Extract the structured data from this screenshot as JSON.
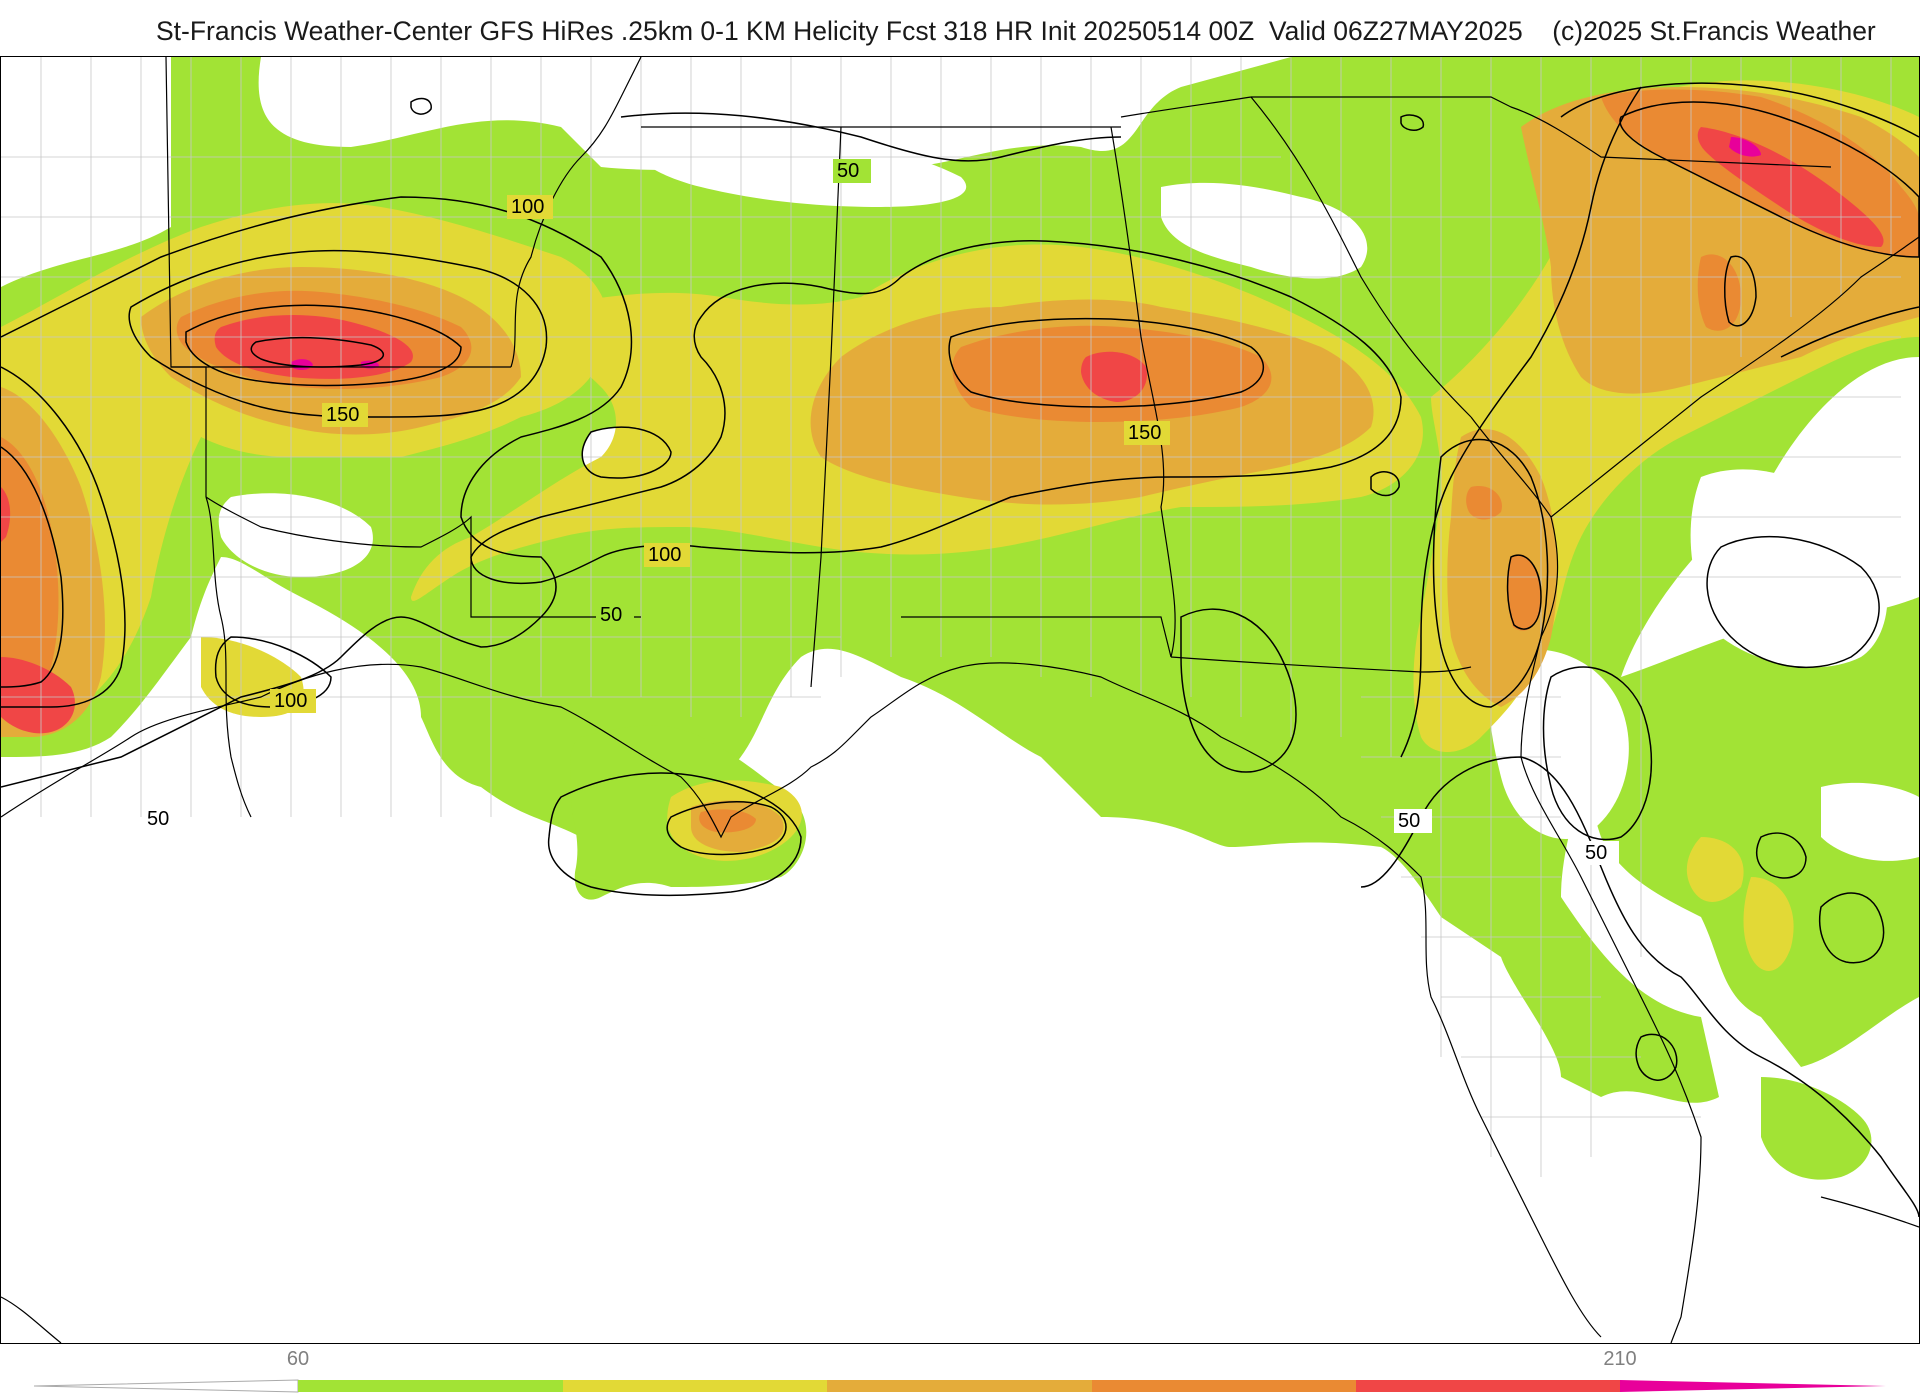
{
  "title": "St-Francis Weather-Center GFS HiRes .25km 0-1 KM Helicity Fcst 318 HR Init 20250514 00Z  Valid 06Z27MAY2025    (c)2025 St.Francis Weather",
  "colors": {
    "white": "#ffffff",
    "green": "#a2e335",
    "yellow": "#e2d936",
    "gold": "#e4ac3a",
    "orange": "#ea8a33",
    "red": "#f04646",
    "magenta": "#e8009a",
    "county_line": "#c8c8c8",
    "state_line": "#000000",
    "contour": "#000000"
  },
  "colorbar": {
    "ticks": [
      {
        "value": "60"
      },
      {
        "value": "210"
      }
    ],
    "levels": [
      30,
      60,
      90,
      120,
      150,
      180,
      210,
      240
    ]
  },
  "contour_labels": [
    {
      "text": "100"
    },
    {
      "text": "150"
    },
    {
      "text": "50"
    },
    {
      "text": "100"
    },
    {
      "text": "50"
    },
    {
      "text": "150"
    },
    {
      "text": "100"
    },
    {
      "text": "50"
    },
    {
      "text": "50"
    },
    {
      "text": "50"
    }
  ]
}
